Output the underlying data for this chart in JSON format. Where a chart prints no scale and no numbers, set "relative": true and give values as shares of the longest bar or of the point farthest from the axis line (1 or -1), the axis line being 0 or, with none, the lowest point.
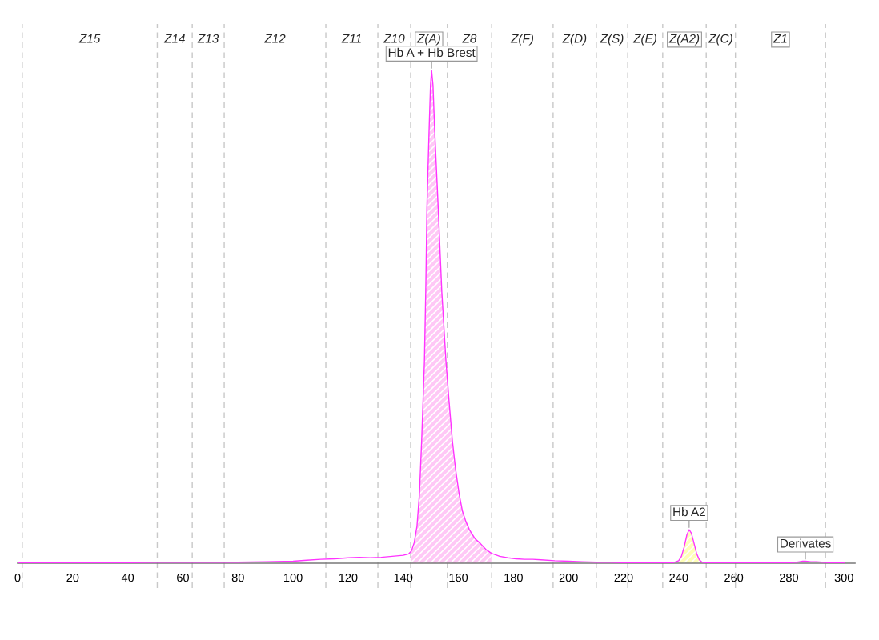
{
  "chart_data": {
    "type": "line",
    "relative": true,
    "xlim": [
      0,
      304
    ],
    "xticks": [
      0,
      20,
      40,
      60,
      80,
      100,
      120,
      140,
      160,
      180,
      200,
      220,
      240,
      260,
      280,
      300
    ],
    "series": [
      {
        "color": "#ff33ff",
        "x": [
          0,
          10,
          20,
          30,
          40,
          50,
          60,
          70,
          80,
          90,
          100,
          105,
          110,
          115,
          120,
          124,
          128,
          132,
          136,
          140,
          142,
          143,
          144,
          145,
          145.9,
          146.7,
          147.2,
          147.7,
          148.2,
          148.6,
          149.4,
          149.9,
          150.3,
          150.8,
          151.4,
          152.7,
          154,
          155.5,
          156.6,
          157.8,
          159,
          160.3,
          161.5,
          162.7,
          164,
          166,
          168,
          170,
          172,
          175,
          178,
          181,
          184,
          187,
          190,
          195,
          200,
          205,
          210,
          215,
          220,
          225,
          230,
          235,
          238,
          240,
          241,
          242,
          243,
          243.8,
          244.6,
          245.5,
          246.5,
          247.5,
          248.5,
          250,
          260,
          270,
          280,
          283,
          285,
          286,
          288,
          290,
          292,
          295,
          300
        ],
        "values": [
          0.001,
          0.001,
          0.001,
          0.001,
          0.001,
          0.002,
          0.002,
          0.002,
          0.002,
          0.003,
          0.004,
          0.006,
          0.008,
          0.009,
          0.011,
          0.012,
          0.011,
          0.012,
          0.014,
          0.016,
          0.019,
          0.025,
          0.042,
          0.075,
          0.142,
          0.25,
          0.33,
          0.41,
          0.56,
          0.72,
          0.88,
          0.97,
          1.0,
          0.97,
          0.88,
          0.72,
          0.55,
          0.41,
          0.33,
          0.25,
          0.19,
          0.14,
          0.105,
          0.085,
          0.068,
          0.05,
          0.04,
          0.028,
          0.02,
          0.014,
          0.011,
          0.009,
          0.008,
          0.008,
          0.007,
          0.005,
          0.004,
          0.003,
          0.002,
          0.002,
          0.001,
          0.001,
          0.001,
          0.001,
          0.001,
          0.005,
          0.014,
          0.033,
          0.058,
          0.068,
          0.061,
          0.042,
          0.02,
          0.007,
          0.002,
          0.001,
          0.001,
          0.001,
          0.001,
          0.002,
          0.004,
          0.004,
          0.003,
          0.003,
          0.002,
          0.001,
          0.001
        ]
      },
      {
        "type": "area",
        "color": "#ffc8f6",
        "x": [
          142.7,
          143,
          144,
          145,
          145.9,
          146.7,
          147.2,
          147.7,
          148.2,
          148.6,
          149.4,
          149.9,
          150.3,
          150.8,
          151.4,
          152.7,
          154,
          155.5,
          156.6,
          157.8,
          159,
          160.3,
          161.5,
          162.7,
          164,
          166,
          168,
          170,
          172
        ],
        "values": [
          0.022,
          0.025,
          0.042,
          0.075,
          0.142,
          0.25,
          0.33,
          0.41,
          0.56,
          0.72,
          0.88,
          0.97,
          1.0,
          0.97,
          0.88,
          0.72,
          0.55,
          0.41,
          0.33,
          0.25,
          0.19,
          0.14,
          0.105,
          0.085,
          0.068,
          0.05,
          0.04,
          0.028,
          0.02
        ]
      },
      {
        "type": "area",
        "color": "#ffffb8",
        "x": [
          239.5,
          240,
          241,
          242,
          243,
          243.8,
          244.6,
          245.5,
          246.5,
          247.5,
          248.5
        ],
        "values": [
          0.003,
          0.005,
          0.014,
          0.033,
          0.058,
          0.068,
          0.061,
          0.042,
          0.02,
          0.007,
          0.002
        ]
      }
    ],
    "ref_lines": [
      {
        "axis": "x",
        "value": 1.7,
        "color": "#c8c8c8",
        "line_style": "dashed"
      },
      {
        "axis": "x",
        "value": 50.7,
        "color": "#c8c8c8",
        "line_style": "dashed"
      },
      {
        "axis": "x",
        "value": 63.4,
        "color": "#c8c8c8",
        "line_style": "dashed"
      },
      {
        "axis": "x",
        "value": 75,
        "color": "#c8c8c8",
        "line_style": "dashed"
      },
      {
        "axis": "x",
        "value": 111.9,
        "color": "#c8c8c8",
        "line_style": "dashed"
      },
      {
        "axis": "x",
        "value": 130.8,
        "color": "#c8c8c8",
        "line_style": "dashed"
      },
      {
        "axis": "x",
        "value": 142.7,
        "color": "#c8c8c8",
        "line_style": "dashed"
      },
      {
        "axis": "x",
        "value": 156,
        "color": "#c8c8c8",
        "line_style": "dashed"
      },
      {
        "axis": "x",
        "value": 172.1,
        "color": "#c8c8c8",
        "line_style": "dashed"
      },
      {
        "axis": "x",
        "value": 194.4,
        "color": "#c8c8c8",
        "line_style": "dashed"
      },
      {
        "axis": "x",
        "value": 210.1,
        "color": "#c8c8c8",
        "line_style": "dashed"
      },
      {
        "axis": "x",
        "value": 221.5,
        "color": "#c8c8c8",
        "line_style": "dashed"
      },
      {
        "axis": "x",
        "value": 234.2,
        "color": "#c8c8c8",
        "line_style": "dashed"
      },
      {
        "axis": "x",
        "value": 250,
        "color": "#c8c8c8",
        "line_style": "dashed"
      },
      {
        "axis": "x",
        "value": 260.6,
        "color": "#c8c8c8",
        "line_style": "dashed"
      },
      {
        "axis": "x",
        "value": 293.3,
        "color": "#c8c8c8",
        "line_style": "dashed"
      }
    ],
    "annotations": [
      "Z15",
      "Z14",
      "Z13",
      "Z12",
      "Z11",
      "Z10",
      "Z(A)",
      "Z8",
      "Z(F)",
      "Z(D)",
      "Z(S)",
      "Z(E)",
      "Z(A2)",
      "Z(C)",
      "Z1",
      {
        "text": "Hb A + Hb Brest",
        "x": 150.3,
        "y": 1.0
      },
      {
        "text": "Hb A2",
        "x": 243.8,
        "y": 0.068
      },
      {
        "text": "Derivates",
        "x": 286,
        "y": 0.004
      }
    ]
  }
}
